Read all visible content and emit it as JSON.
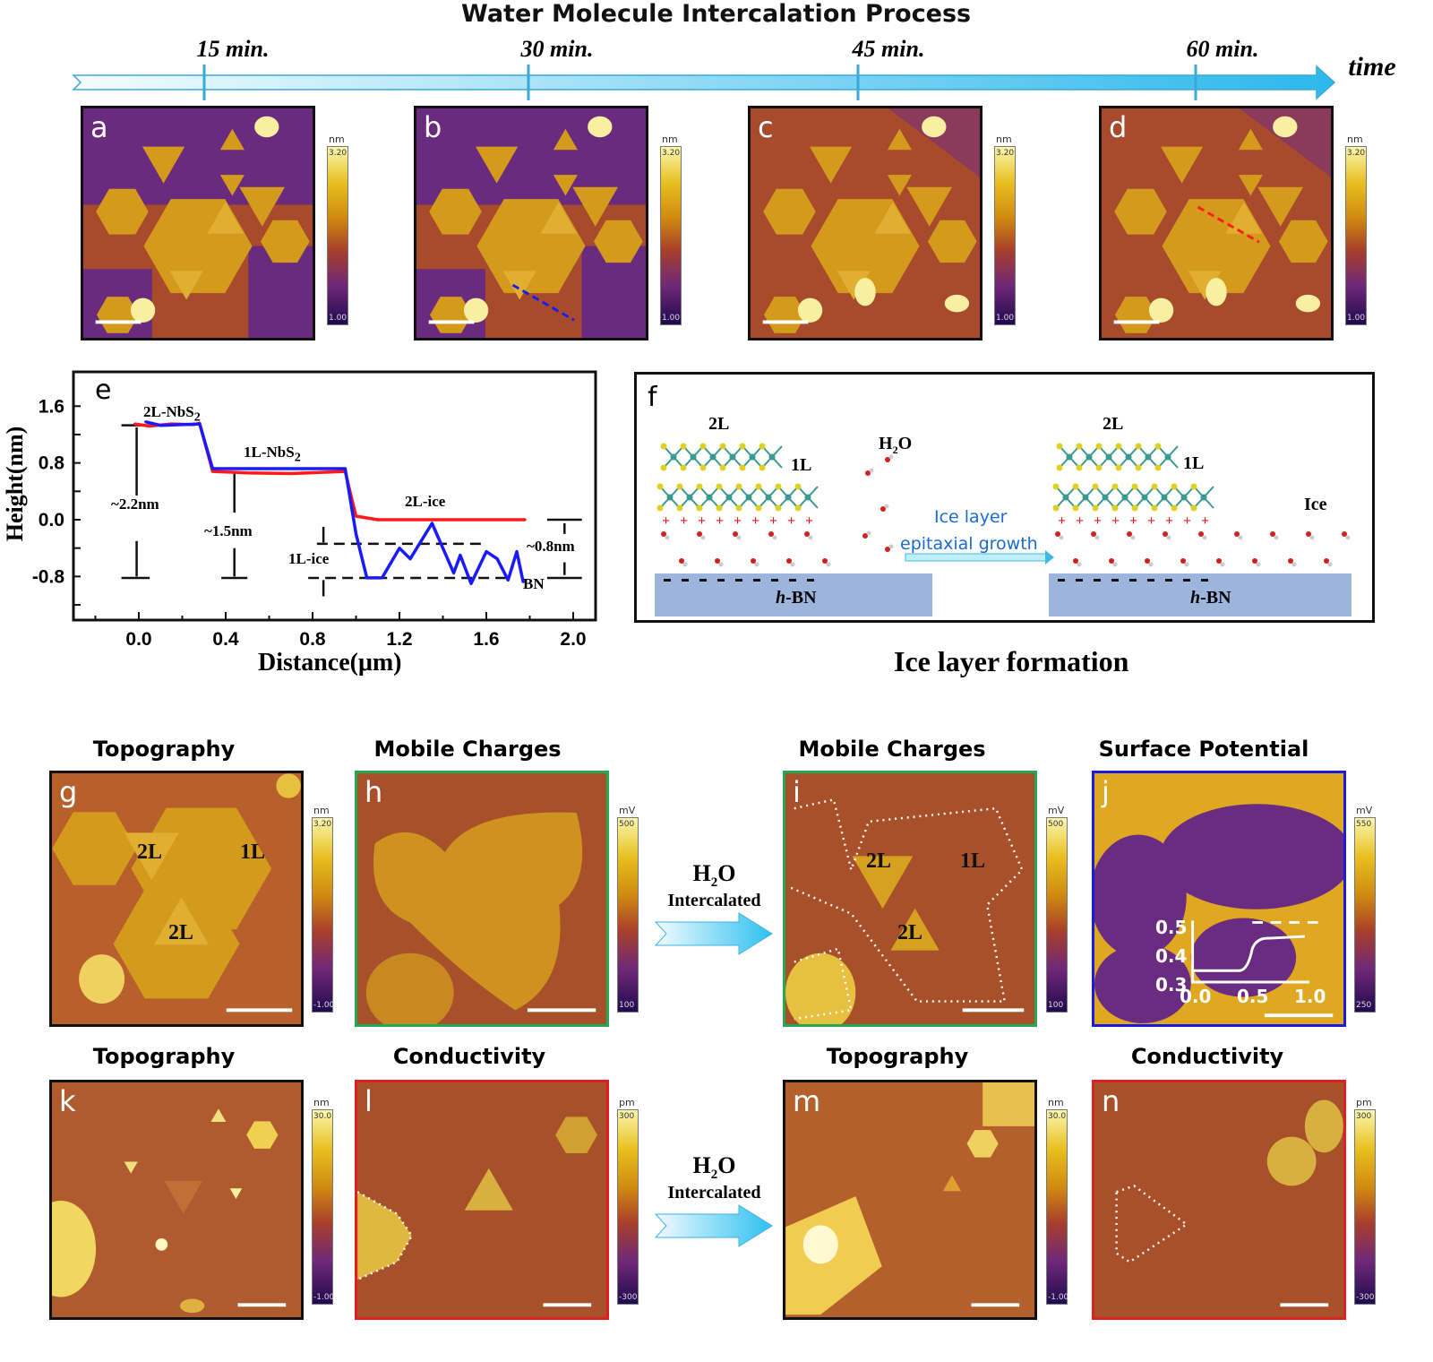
{
  "header": {
    "title": "Water Molecule  Intercalation Process",
    "time_label": "time",
    "timepoints": [
      "15 min.",
      "30 min.",
      "45 min.",
      "60 min."
    ]
  },
  "colors": {
    "afm_background": "#a84a2c",
    "afm_low": "#6a2a7e",
    "afm_flake": "#d49a1c",
    "afm_bright": "#f8f0a0",
    "red_curve": "#ff1a1a",
    "blue_curve": "#1a1aff",
    "hbn": "#9db4dc",
    "arrow": "#5ad0f0"
  },
  "panels_top": [
    {
      "label": "a",
      "cbar_unit": "nm",
      "cbar_max": "3.20",
      "cbar_min": "1.00"
    },
    {
      "label": "b",
      "cbar_unit": "nm",
      "cbar_max": "3.20",
      "cbar_min": "1.00",
      "line": "blue dashed"
    },
    {
      "label": "c",
      "cbar_unit": "nm",
      "cbar_max": "3.20",
      "cbar_min": "1.00"
    },
    {
      "label": "d",
      "cbar_unit": "nm",
      "cbar_max": "3.20",
      "cbar_min": "1.00",
      "line": "red dashed"
    }
  ],
  "chart_data": {
    "type": "line",
    "panel_label": "e",
    "xlabel": "Distance(μm)",
    "ylabel": "Height(nm)",
    "xlim": [
      -0.3,
      2.1
    ],
    "ylim": [
      -1.2,
      1.95
    ],
    "xticks": [
      "0.0",
      "0.4",
      "0.8",
      "1.2",
      "1.6",
      "2.0"
    ],
    "yticks": [
      "1.6",
      "0.8",
      "0.0",
      "-0.8"
    ],
    "series": [
      {
        "color": "#ff1a1a",
        "x": [
          -0.02,
          0.05,
          0.15,
          0.25,
          0.28,
          0.34,
          0.5,
          0.7,
          0.95,
          1.0,
          1.1,
          1.4,
          1.78
        ],
        "y": [
          1.35,
          1.32,
          1.35,
          1.34,
          1.36,
          0.68,
          0.66,
          0.65,
          0.68,
          0.05,
          0.0,
          0.0,
          0.0
        ]
      },
      {
        "color": "#1a1aff",
        "x": [
          0.03,
          0.1,
          0.28,
          0.34,
          0.5,
          0.95,
          1.0,
          1.05,
          1.12,
          1.2,
          1.25,
          1.35,
          1.45,
          1.48,
          1.53,
          1.6,
          1.65,
          1.7,
          1.74,
          1.77
        ],
        "y": [
          1.38,
          1.33,
          1.35,
          0.72,
          0.72,
          0.72,
          -0.2,
          -0.82,
          -0.82,
          -0.4,
          -0.55,
          -0.05,
          -0.75,
          -0.5,
          -0.9,
          -0.45,
          -0.55,
          -0.85,
          -0.45,
          -0.88
        ]
      }
    ],
    "annotations": {
      "l2": "2L-NbS",
      "l1": "1L-NbS",
      "sub": "2",
      "ice2": "2L-ice",
      "ice1": "1L-ice",
      "bn": "BN",
      "d1": "~2.2nm",
      "d2": "~1.5nm",
      "d3": "~0.8nm"
    }
  },
  "schematic": {
    "panel_label": "f",
    "left_2l": "2L",
    "left_1l": "1L",
    "h2o": "H",
    "h2o_sub": "2",
    "h2o_o": "O",
    "arrow_line1": "Ice layer",
    "arrow_line2": "epitaxial growth",
    "right_2l": "2L",
    "right_1l": "1L",
    "ice": "Ice",
    "substrate": "-BN",
    "substrate_h": "h",
    "caption": "Ice layer formation"
  },
  "row2": {
    "titles": [
      "Topography",
      "Mobile Charges",
      "Mobile Charges",
      "Surface Potential"
    ],
    "panels": [
      {
        "label": "g",
        "cbar_unit": "nm",
        "cbar_max": "3.20",
        "cbar_min": "-1.00",
        "tags": [
          "2L",
          "1L",
          "2L"
        ]
      },
      {
        "label": "h",
        "cbar_unit": "mV",
        "cbar_max": "500",
        "cbar_min": "100"
      },
      {
        "label": "i",
        "cbar_unit": "mV",
        "cbar_max": "500",
        "cbar_min": "100",
        "tags": [
          "2L",
          "1L",
          "2L"
        ]
      },
      {
        "label": "j",
        "cbar_unit": "mV",
        "cbar_max": "550",
        "cbar_min": "250",
        "inset_yticks": [
          "0.5",
          "0.4",
          "0.3"
        ],
        "inset_xticks": [
          "0.0",
          "0.5",
          "1.0"
        ]
      }
    ],
    "arrow": {
      "line1": "H",
      "sub": "2",
      "line1b": "O",
      "line2": "Intercalated"
    }
  },
  "row3": {
    "titles": [
      "Topography",
      "Conductivity",
      "Topography",
      "Conductivity"
    ],
    "panels": [
      {
        "label": "k",
        "cbar_unit": "nm",
        "cbar_max": "30.0",
        "cbar_min": "-1.00"
      },
      {
        "label": "l",
        "cbar_unit": "pm",
        "cbar_max": "300",
        "cbar_min": "-300"
      },
      {
        "label": "m",
        "cbar_unit": "nm",
        "cbar_max": "30.0",
        "cbar_min": "-1.00"
      },
      {
        "label": "n",
        "cbar_unit": "pm",
        "cbar_max": "300",
        "cbar_min": "-300"
      }
    ],
    "arrow": {
      "line1": "H",
      "sub": "2",
      "line1b": "O",
      "line2": "Intercalated"
    }
  }
}
